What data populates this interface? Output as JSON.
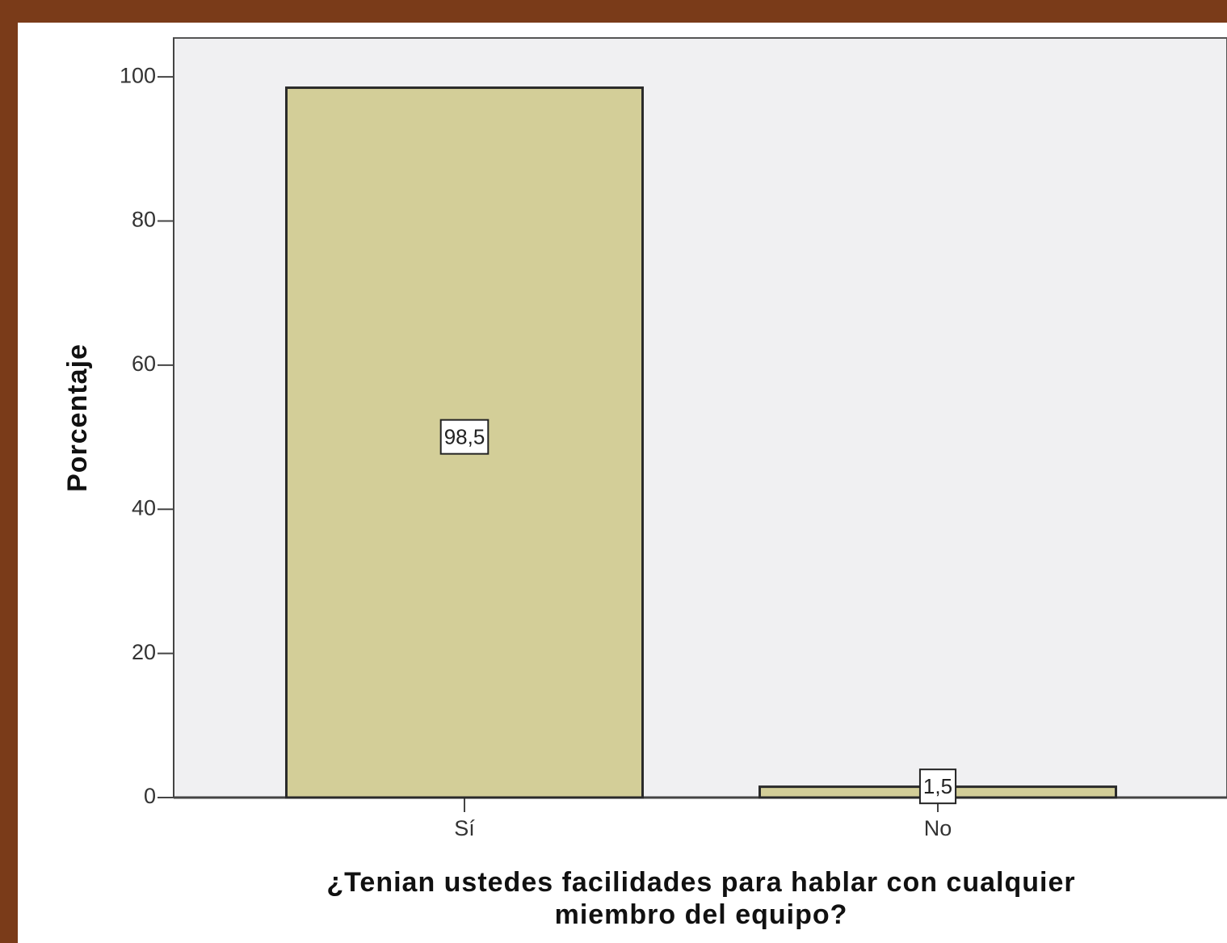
{
  "chart_data": {
    "type": "bar",
    "categories": [
      "Sí",
      "No"
    ],
    "values": [
      98.5,
      1.5
    ],
    "value_labels": [
      "98,5",
      "1,5"
    ],
    "color": "#d3ce98",
    "ylabel": "Porcentaje",
    "xlabel": [
      "¿Tenian ustedes facilidades para hablar con cualquier",
      "miembro del equipo?"
    ],
    "ylim": [
      0,
      105.4
    ],
    "yticks": [
      0,
      20,
      40,
      60,
      80,
      100
    ],
    "grid": false
  }
}
